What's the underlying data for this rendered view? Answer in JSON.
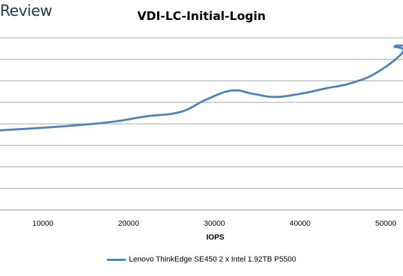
{
  "header": {
    "brand_text": "Review"
  },
  "chart_data": {
    "type": "line",
    "title": "VDI-LC-Initial-Login",
    "xlabel": "IOPS",
    "ylabel": "",
    "xlim": [
      5000,
      52000
    ],
    "ylim": [
      0,
      8
    ],
    "x_ticks": [
      10000,
      20000,
      30000,
      40000,
      50000
    ],
    "grid": true,
    "legend_position": "bottom",
    "series": [
      {
        "name": "Lenovo ThinkEdge SE450 2 x Intel 1.92TB P5500",
        "color": "#4f81bd",
        "x": [
          5000,
          10000,
          15000,
          18500,
          22000,
          26000,
          29000,
          32000,
          34500,
          37000,
          40000,
          43000,
          46000,
          49000,
          52000,
          51000,
          52300
        ],
        "y": [
          3.7,
          3.82,
          3.97,
          4.12,
          4.35,
          4.55,
          5.12,
          5.55,
          5.4,
          5.25,
          5.4,
          5.65,
          5.9,
          6.4,
          7.35,
          7.6,
          7.65
        ]
      }
    ]
  }
}
